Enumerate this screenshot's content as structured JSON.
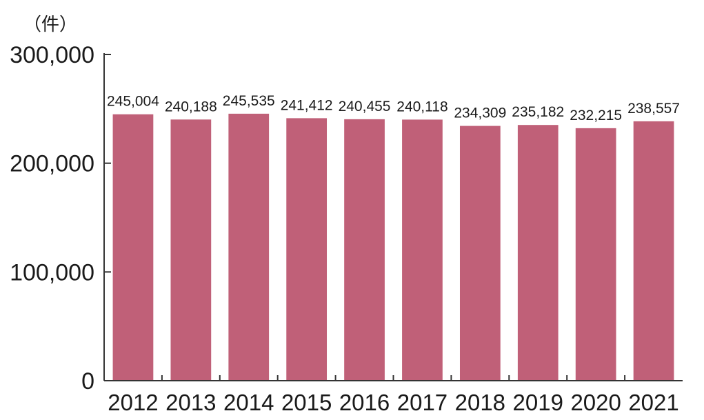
{
  "chart_data": {
    "type": "bar",
    "unit_label": "（件）",
    "categories": [
      "2012",
      "2013",
      "2014",
      "2015",
      "2016",
      "2017",
      "2018",
      "2019",
      "2020",
      "2021"
    ],
    "values": [
      245004,
      240188,
      245535,
      241412,
      240455,
      240118,
      234309,
      235182,
      232215,
      238557
    ],
    "value_labels": [
      "245,004",
      "240,188",
      "245,535",
      "241,412",
      "240,455",
      "240,118",
      "234,309",
      "235,182",
      "232,215",
      "238,557"
    ],
    "y_ticks": [
      0,
      100000,
      200000,
      300000
    ],
    "y_tick_labels": [
      "0",
      "100,000",
      "200,000",
      "300,000"
    ],
    "ylim": [
      0,
      300000
    ],
    "bar_color": "#c06078",
    "grid": false
  }
}
